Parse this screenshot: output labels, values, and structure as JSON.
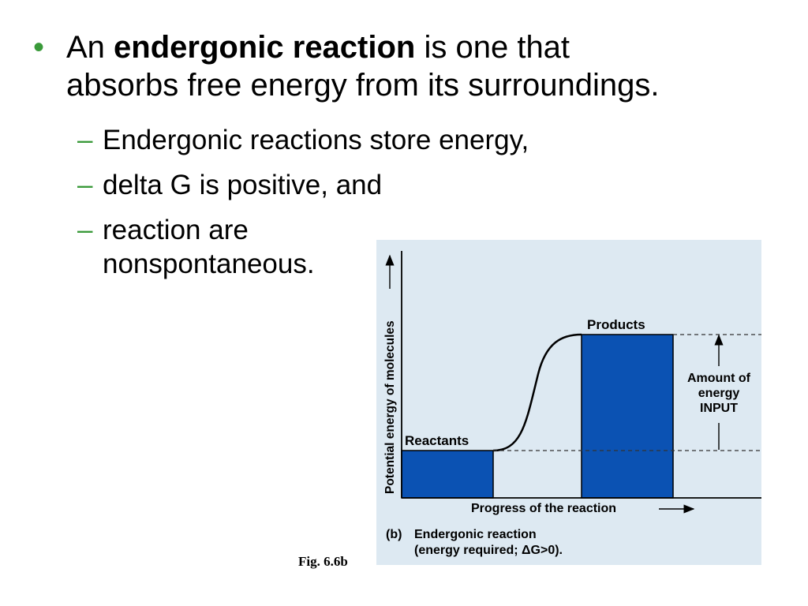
{
  "bullet": {
    "marker": "•",
    "prefix": "An ",
    "term": "endergonic reaction",
    "suffix_line1": " is one that",
    "line2": "absorbs free energy from its surroundings."
  },
  "sub_bullets": [
    {
      "marker": "–",
      "text": "Endergonic reactions store energy,"
    },
    {
      "marker": "–",
      "text": "delta G is positive, and"
    },
    {
      "marker": "–",
      "line1": "reaction are",
      "line2": "nonspontaneous."
    }
  ],
  "figure": {
    "caption": "Fig. 6.6b",
    "y_axis_label": "Potential energy of molecules",
    "x_axis_label": "Progress of the reaction",
    "reactants_label": "Reactants",
    "products_label": "Products",
    "amount_label": [
      "Amount of",
      "energy",
      "INPUT"
    ],
    "panel_letter": "(b)",
    "panel_title": "Endergonic reaction",
    "panel_subtitle": "(energy required; ΔG>0).",
    "colors": {
      "background": "#dde9f2",
      "bars": "#0b52b3",
      "bullet_accent": "#3a9a3a"
    }
  }
}
